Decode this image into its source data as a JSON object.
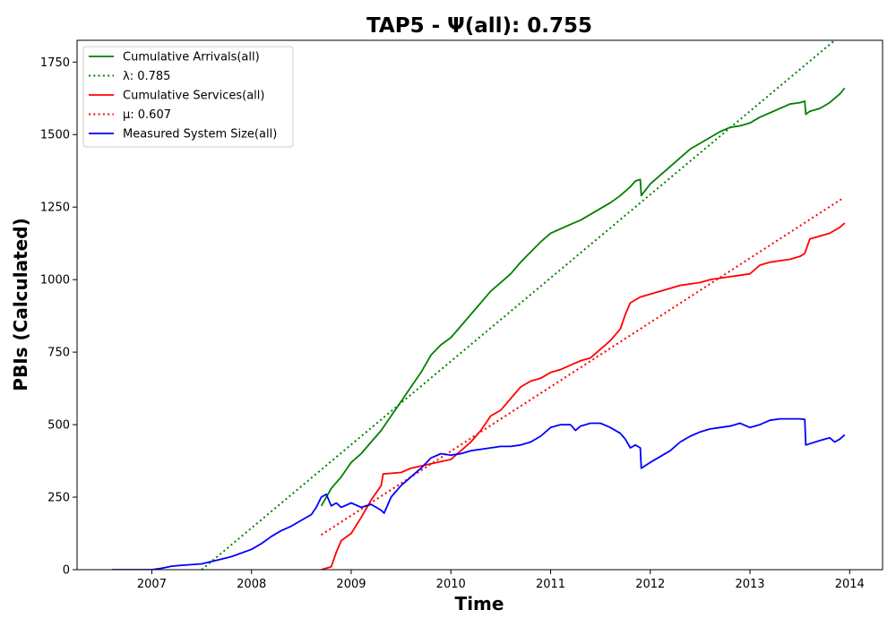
{
  "chart_data": {
    "type": "line",
    "title": "TAP5 -  Ψ(all): 0.755",
    "xlabel": "Time",
    "ylabel": "PBIs (Calculated)",
    "xlim": [
      2006.25,
      2014.33
    ],
    "ylim": [
      0,
      1825
    ],
    "x_ticks": [
      "2007",
      "2008",
      "2009",
      "2010",
      "2011",
      "2012",
      "2013",
      "2014"
    ],
    "y_ticks": [
      "0",
      "250",
      "500",
      "750",
      "1000",
      "1250",
      "1500",
      "1750"
    ],
    "grid": false,
    "legend_position": "top-left",
    "series": [
      {
        "name": "Cumulative Arrivals(all)",
        "color": "#008000",
        "style": "solid",
        "x": [
          2008.7,
          2008.75,
          2008.8,
          2008.85,
          2008.9,
          2009.0,
          2009.1,
          2009.2,
          2009.3,
          2009.4,
          2009.5,
          2009.6,
          2009.7,
          2009.8,
          2009.9,
          2010.0,
          2010.1,
          2010.2,
          2010.3,
          2010.4,
          2010.5,
          2010.6,
          2010.7,
          2010.8,
          2010.9,
          2011.0,
          2011.1,
          2011.2,
          2011.3,
          2011.4,
          2011.5,
          2011.6,
          2011.7,
          2011.8,
          2011.85,
          2011.9,
          2011.91,
          2012.0,
          2012.1,
          2012.2,
          2012.3,
          2012.4,
          2012.5,
          2012.6,
          2012.7,
          2012.8,
          2012.9,
          2013.0,
          2013.1,
          2013.2,
          2013.3,
          2013.4,
          2013.5,
          2013.55,
          2013.56,
          2013.6,
          2013.7,
          2013.8,
          2013.9,
          2013.95
        ],
        "y": [
          220,
          250,
          280,
          300,
          320,
          370,
          400,
          440,
          480,
          530,
          580,
          630,
          680,
          740,
          775,
          800,
          840,
          880,
          920,
          960,
          990,
          1020,
          1060,
          1095,
          1130,
          1160,
          1175,
          1190,
          1205,
          1225,
          1245,
          1265,
          1290,
          1320,
          1340,
          1345,
          1290,
          1330,
          1360,
          1390,
          1420,
          1450,
          1470,
          1490,
          1510,
          1525,
          1530,
          1540,
          1560,
          1575,
          1590,
          1605,
          1610,
          1615,
          1570,
          1580,
          1590,
          1610,
          1640,
          1660
        ]
      },
      {
        "name": "λ: 0.785",
        "color": "#008000",
        "style": "dotted",
        "x": [
          2007.5,
          2013.85
        ],
        "y": [
          0,
          1825
        ]
      },
      {
        "name": "Cumulative Services(all)",
        "color": "#ff0000",
        "style": "solid",
        "x": [
          2008.7,
          2008.8,
          2008.85,
          2008.9,
          2009.0,
          2009.1,
          2009.2,
          2009.3,
          2009.32,
          2009.5,
          2009.6,
          2009.8,
          2010.0,
          2010.1,
          2010.2,
          2010.3,
          2010.4,
          2010.5,
          2010.6,
          2010.7,
          2010.8,
          2010.9,
          2011.0,
          2011.1,
          2011.2,
          2011.3,
          2011.4,
          2011.5,
          2011.6,
          2011.7,
          2011.75,
          2011.8,
          2011.9,
          2012.0,
          2012.1,
          2012.2,
          2012.3,
          2012.4,
          2012.5,
          2012.6,
          2012.7,
          2012.8,
          2012.9,
          2013.0,
          2013.1,
          2013.2,
          2013.3,
          2013.4,
          2013.5,
          2013.55,
          2013.6,
          2013.7,
          2013.8,
          2013.9,
          2013.95
        ],
        "y": [
          0,
          10,
          60,
          100,
          125,
          180,
          240,
          290,
          330,
          335,
          350,
          365,
          380,
          410,
          440,
          480,
          530,
          550,
          590,
          630,
          650,
          660,
          680,
          690,
          705,
          720,
          730,
          760,
          790,
          830,
          880,
          920,
          940,
          950,
          960,
          970,
          980,
          985,
          990,
          1000,
          1005,
          1010,
          1015,
          1020,
          1050,
          1060,
          1065,
          1070,
          1080,
          1090,
          1140,
          1150,
          1160,
          1180,
          1195
        ]
      },
      {
        "name": "μ: 0.607",
        "color": "#ff0000",
        "style": "dotted",
        "x": [
          2008.7,
          2013.92
        ],
        "y": [
          120,
          1278
        ]
      },
      {
        "name": "Measured System Size(all)",
        "color": "#0000ff",
        "style": "solid",
        "x": [
          2006.6,
          2007.0,
          2007.1,
          2007.2,
          2007.3,
          2007.5,
          2007.6,
          2007.8,
          2008.0,
          2008.1,
          2008.2,
          2008.3,
          2008.4,
          2008.5,
          2008.6,
          2008.65,
          2008.7,
          2008.75,
          2008.8,
          2008.85,
          2008.9,
          2009.0,
          2009.1,
          2009.2,
          2009.3,
          2009.33,
          2009.4,
          2009.5,
          2009.6,
          2009.7,
          2009.8,
          2009.9,
          2010.0,
          2010.1,
          2010.2,
          2010.3,
          2010.4,
          2010.5,
          2010.6,
          2010.7,
          2010.8,
          2010.9,
          2011.0,
          2011.1,
          2011.2,
          2011.25,
          2011.3,
          2011.4,
          2011.5,
          2011.6,
          2011.7,
          2011.75,
          2011.8,
          2011.85,
          2011.9,
          2011.91,
          2012.0,
          2012.1,
          2012.2,
          2012.3,
          2012.4,
          2012.5,
          2012.6,
          2012.7,
          2012.8,
          2012.9,
          2013.0,
          2013.1,
          2013.2,
          2013.3,
          2013.4,
          2013.5,
          2013.55,
          2013.56,
          2013.7,
          2013.8,
          2013.85,
          2013.9,
          2013.95
        ],
        "y": [
          0,
          0,
          5,
          12,
          15,
          20,
          28,
          45,
          70,
          90,
          115,
          135,
          150,
          170,
          190,
          215,
          250,
          260,
          220,
          230,
          215,
          230,
          215,
          225,
          205,
          195,
          250,
          290,
          320,
          350,
          385,
          400,
          395,
          400,
          410,
          415,
          420,
          425,
          425,
          430,
          440,
          460,
          490,
          500,
          500,
          480,
          495,
          505,
          505,
          490,
          470,
          450,
          420,
          430,
          420,
          350,
          370,
          390,
          410,
          440,
          460,
          475,
          485,
          490,
          495,
          505,
          490,
          500,
          515,
          520,
          520,
          520,
          518,
          430,
          445,
          455,
          440,
          450,
          465
        ]
      }
    ]
  }
}
